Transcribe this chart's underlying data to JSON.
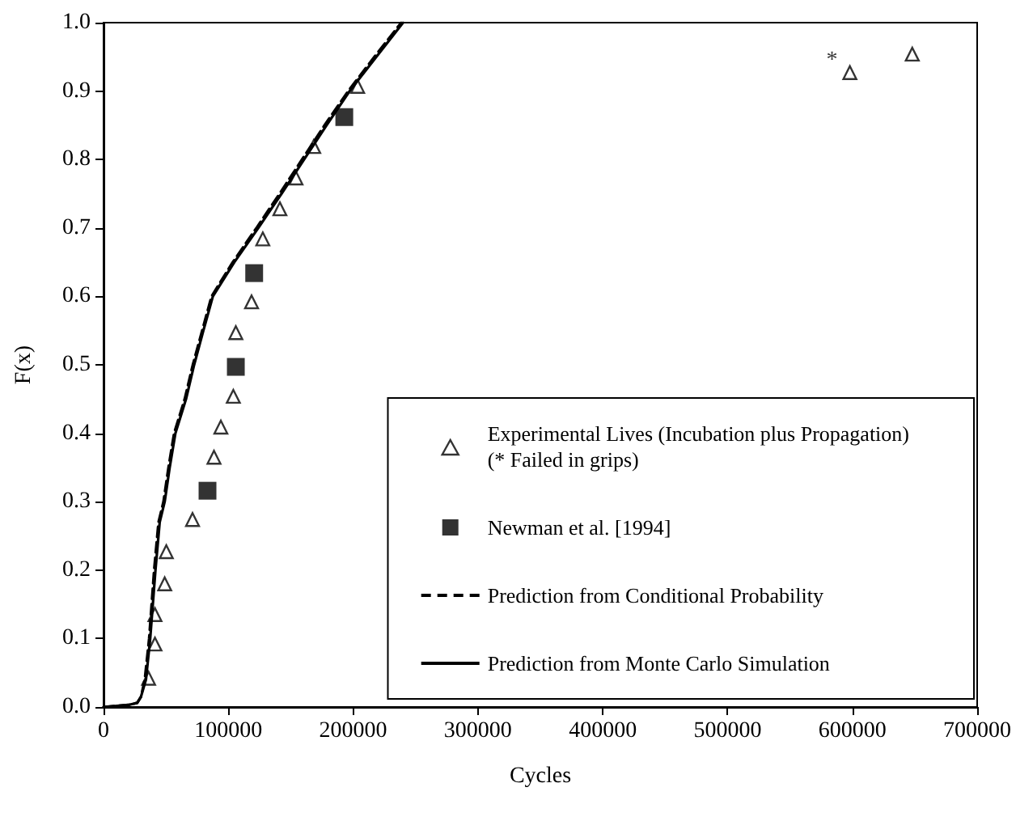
{
  "chart_data": {
    "type": "scatter",
    "xlabel": "Cycles",
    "ylabel": "F(x)",
    "xlim": [
      0,
      700000
    ],
    "ylim": [
      0,
      1
    ],
    "xticks": [
      0,
      100000,
      200000,
      300000,
      400000,
      500000,
      600000,
      700000
    ],
    "yticks": [
      {
        "value": 0,
        "label": "0.0"
      },
      {
        "value": 0.1,
        "label": "0.1"
      },
      {
        "value": 0.2,
        "label": "0.2"
      },
      {
        "value": 0.3,
        "label": "0.3"
      },
      {
        "value": 0.4,
        "label": "0.4"
      },
      {
        "value": 0.5,
        "label": "0.5"
      },
      {
        "value": 0.6,
        "label": "0.6"
      },
      {
        "value": 0.7,
        "label": "0.7"
      },
      {
        "value": 0.8,
        "label": "0.8"
      },
      {
        "value": 0.9,
        "label": "0.9"
      },
      {
        "value": 1,
        "label": "1.0"
      }
    ],
    "grid": false,
    "legend": "bottom right",
    "series": [
      {
        "name": "Experimental Lives (Incubation plus Propagation)\n(* Failed in grips)",
        "marker": "triangle",
        "color": "#000000",
        "x": [
          36100,
          41200,
          41200,
          49000,
          50300,
          71300,
          88500,
          94000,
          104000,
          106000,
          118600,
          127600,
          141300,
          154200,
          168400,
          203600,
          598000,
          648000
        ],
        "values": [
          0.042,
          0.092,
          0.135,
          0.18,
          0.227,
          0.274,
          0.365,
          0.409,
          0.454,
          0.547,
          0.592,
          0.684,
          0.728,
          0.773,
          0.819,
          0.907,
          0.927,
          0.954
        ],
        "value_labels": [
          null,
          null,
          null,
          null,
          null,
          null,
          null,
          null,
          null,
          null,
          null,
          null,
          null,
          null,
          null,
          null,
          "*",
          null
        ]
      },
      {
        "name": "Newman et al. [1994]",
        "marker": "square",
        "color": "#000000",
        "x": [
          83300,
          106000,
          120700,
          192900
        ],
        "values": [
          0.316,
          0.497,
          0.634,
          0.862
        ]
      },
      {
        "name": "Prediction from Conditional Probability",
        "type": "line",
        "marker": "none",
        "line_style": "dashed",
        "color": "#000000",
        "x": [
          0,
          20000,
          27000,
          30000,
          33000,
          36500,
          40500,
          44000,
          48000,
          52000,
          56500,
          65000,
          71500,
          79000,
          86500,
          103500,
          122500,
          141000,
          159000,
          177000,
          196000,
          217000,
          238500
        ],
        "values": [
          0,
          0.003,
          0.006,
          0.015,
          0.04,
          0.1,
          0.2,
          0.27,
          0.3,
          0.35,
          0.4,
          0.45,
          0.5,
          0.55,
          0.6,
          0.65,
          0.7,
          0.75,
          0.8,
          0.85,
          0.9,
          0.95,
          1
        ]
      },
      {
        "name": "Prediction from Monte Carlo Simulation",
        "type": "line",
        "marker": "none",
        "line_style": "solid",
        "color": "#000000",
        "x": [
          0,
          20000,
          27000,
          30000,
          34000,
          37400,
          41600,
          45000,
          49000,
          53000,
          57600,
          66100,
          72600,
          80000,
          87600,
          104800,
          124000,
          142600,
          160700,
          178700,
          197200,
          218600,
          240000
        ],
        "values": [
          0,
          0.003,
          0.006,
          0.015,
          0.04,
          0.1,
          0.2,
          0.27,
          0.3,
          0.35,
          0.4,
          0.45,
          0.5,
          0.55,
          0.6,
          0.65,
          0.7,
          0.75,
          0.8,
          0.85,
          0.9,
          0.95,
          1
        ]
      }
    ]
  }
}
